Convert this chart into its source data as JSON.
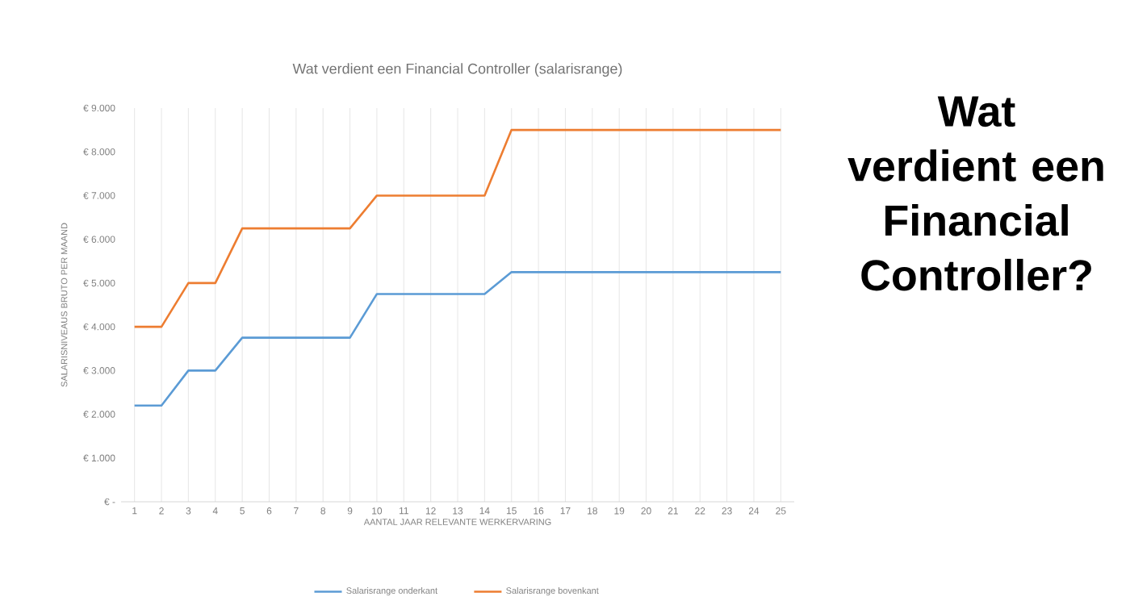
{
  "chart_data": {
    "type": "line",
    "title": "Wat verdient een Financial Controller (salarisrange)",
    "xlabel": "AANTAL JAAR RELEVANTE WERKERVARING",
    "ylabel": "SALARISNIVEAUS BRUTO PER MAAND",
    "categories": [
      "1",
      "2",
      "3",
      "4",
      "5",
      "6",
      "7",
      "8",
      "9",
      "10",
      "11",
      "12",
      "13",
      "14",
      "15",
      "16",
      "17",
      "18",
      "19",
      "20",
      "21",
      "22",
      "23",
      "24",
      "25"
    ],
    "series": [
      {
        "name": "Salarisrange onderkant",
        "color": "#5b9bd5",
        "values": [
          2200,
          2200,
          3000,
          3000,
          3750,
          3750,
          3750,
          3750,
          3750,
          4750,
          4750,
          4750,
          4750,
          4750,
          5250,
          5250,
          5250,
          5250,
          5250,
          5250,
          5250,
          5250,
          5250,
          5250,
          5250
        ]
      },
      {
        "name": "Salarisrange bovenkant",
        "color": "#ed7d31",
        "values": [
          4000,
          4000,
          5000,
          5000,
          6250,
          6250,
          6250,
          6250,
          6250,
          7000,
          7000,
          7000,
          7000,
          7000,
          8500,
          8500,
          8500,
          8500,
          8500,
          8500,
          8500,
          8500,
          8500,
          8500,
          8500
        ]
      }
    ],
    "ylim": [
      0,
      9000
    ],
    "yticks": [
      {
        "value": 0,
        "label": "€ -"
      },
      {
        "value": 1000,
        "label": "€ 1.000"
      },
      {
        "value": 2000,
        "label": "€ 2.000"
      },
      {
        "value": 3000,
        "label": "€ 3.000"
      },
      {
        "value": 4000,
        "label": "€ 4.000"
      },
      {
        "value": 5000,
        "label": "€ 5.000"
      },
      {
        "value": 6000,
        "label": "€ 6.000"
      },
      {
        "value": 7000,
        "label": "€ 7.000"
      },
      {
        "value": 8000,
        "label": "€ 8.000"
      },
      {
        "value": 9000,
        "label": "€ 9.000"
      }
    ],
    "grid": "x",
    "legend": "bottom",
    "marker": "none",
    "line_style": "solid",
    "annotations": [
      "Wat verdient een Financial Controller?"
    ]
  }
}
